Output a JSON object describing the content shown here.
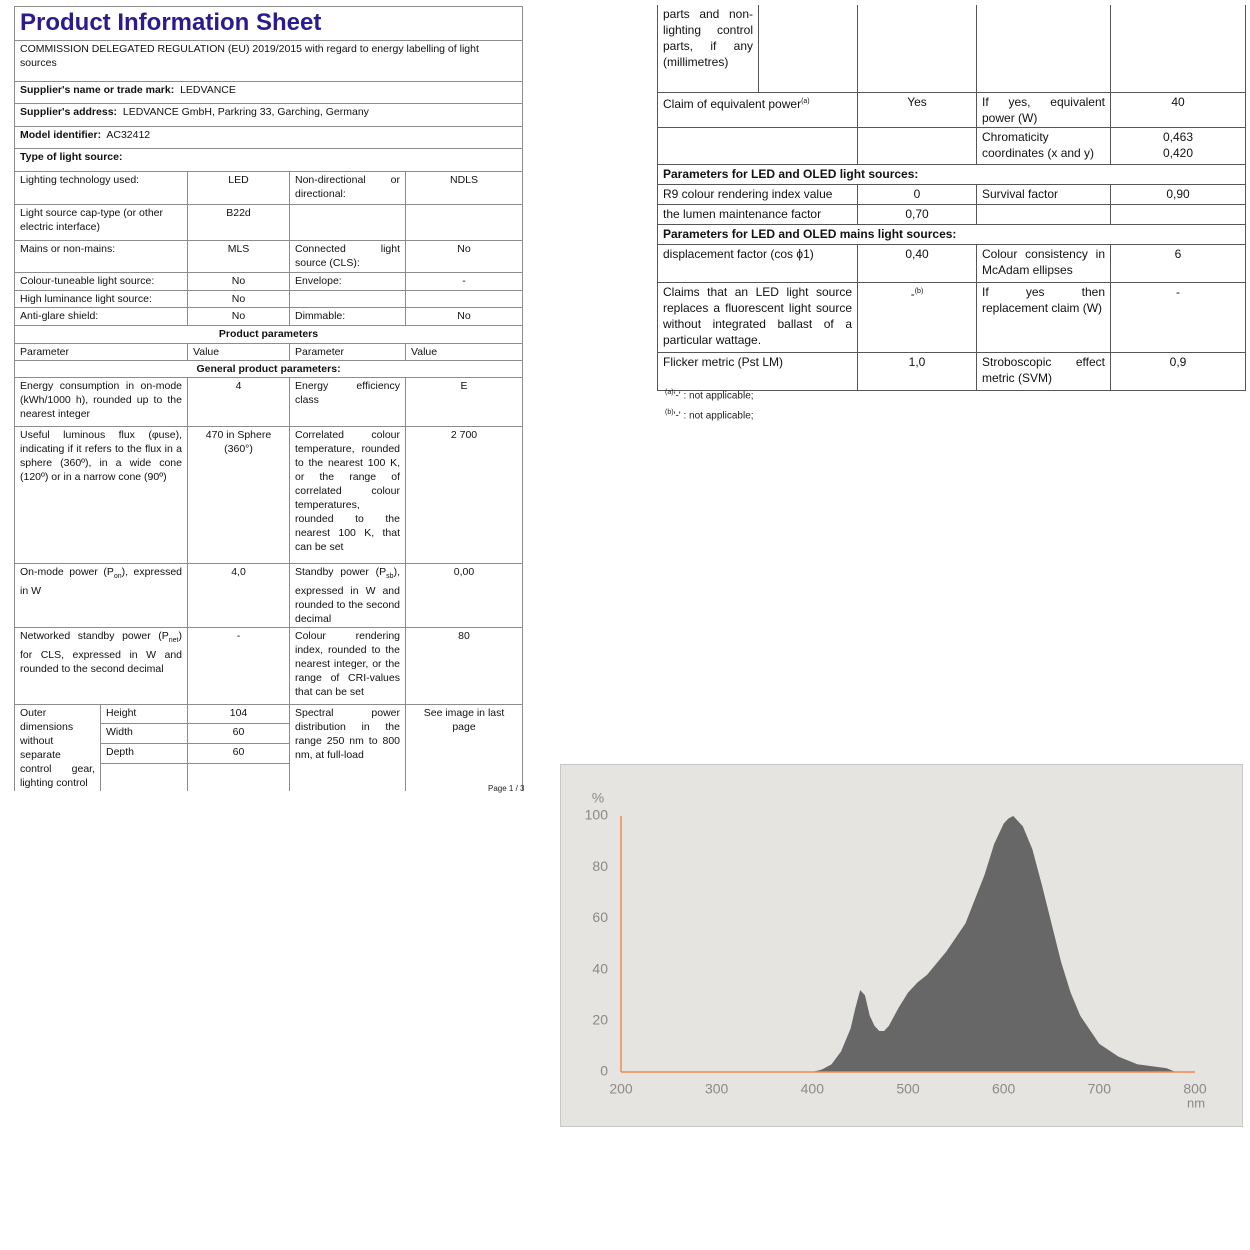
{
  "left_page": {
    "title": "Product Information Sheet",
    "regulation": "COMMISSION DELEGATED REGULATION (EU) 2019/2015 with regard to energy labelling of light sources",
    "supplier_name": {
      "label": "Supplier's name or trade mark:",
      "value": "LEDVANCE"
    },
    "supplier_address": {
      "label": "Supplier's address:",
      "value": "LEDVANCE GmbH, Parkring 33, Garching, Germany"
    },
    "model_identifier": {
      "label": "Model identifier:",
      "value": "AC32412"
    },
    "type_heading": "Type of light source:",
    "type_rows": [
      [
        "Lighting technology used:",
        "LED",
        "Non-directional or directional:",
        "NDLS"
      ],
      [
        "Light source cap-type (or other electric interface)",
        "B22d"
      ],
      [
        "Mains or non-mains:",
        "MLS",
        "Connected light source (CLS):",
        "No"
      ],
      [
        "Colour-tuneable light source:",
        "No",
        "Envelope:",
        "-"
      ],
      [
        "High luminance light source:",
        "No"
      ],
      [
        "Anti-glare shield:",
        "No",
        "Dimmable:",
        "No"
      ]
    ],
    "product_parameters": "Product parameters",
    "columns": [
      "Parameter",
      "Value",
      "Parameter",
      "Value"
    ],
    "general_heading": "General product parameters:",
    "general_rows": [
      [
        "Energy consumption in on-mode (kWh/1000 h), rounded up to the nearest integer",
        "4",
        "Energy efficiency class",
        "E"
      ],
      [
        "Useful luminous flux (φuse), indicating if it refers to the flux in a sphere (360º), in a wide cone (120º) or in a narrow cone (90º)",
        "470 in Sphere (360°)",
        "Correlated colour temperature, rounded to the nearest 100 K, or the range of correlated colour temperatures, rounded to the nearest 100 K, that can be set",
        "2 700"
      ],
      [
        [
          "On-mode power (P",
          "on",
          "), expressed in W"
        ],
        "4,0",
        [
          "Standby power (P",
          "sb",
          "), expressed in W and rounded to the second decimal"
        ],
        "0,00"
      ],
      [
        [
          "Networked standby power (P",
          "net",
          ") for CLS, expressed in W and rounded to the second decimal"
        ],
        "-",
        "Colour rendering index, rounded to the nearest integer, or the range of CRI-values that can be set",
        "80"
      ]
    ],
    "outer_dimensions": {
      "label": "Outer dimensions without separate control gear, lighting control",
      "rows": [
        [
          "Height",
          "104"
        ],
        [
          "Width",
          "60"
        ],
        [
          "Depth",
          "60"
        ]
      ]
    },
    "spectral": {
      "label": "Spectral power distribution in the range 250 nm to 800 nm, at full-load",
      "value": "See image in last page"
    },
    "page": "Page 1 / 3"
  },
  "right_page": {
    "continued": "parts and non-lighting control parts, if any (millimetres)",
    "rows": [
      [
        [
          "Claim of equivalent power",
          "(a)"
        ],
        "Yes",
        "If yes, equivalent power (W)",
        "40"
      ]
    ],
    "chromaticity": {
      "label": "Chromaticity coordinates (x and y)",
      "x": "0,463",
      "y": "0,420"
    },
    "led_heading": "Parameters for LED and OLED light sources:",
    "led_rows": [
      [
        "R9 colour rendering index value",
        "0",
        "Survival factor",
        "0,90"
      ],
      [
        "the lumen maintenance factor",
        "0,70"
      ]
    ],
    "mains_heading": "Parameters for LED and OLED mains light sources:",
    "mains_rows": [
      [
        "displacement factor (cos ϕ1)",
        "0,40",
        "Colour consistency in McAdam ellipses",
        "6"
      ],
      [
        "Claims that an LED light source replaces a fluorescent light source without integrated ballast of a particular wattage.",
        [
          "-",
          "(b)"
        ],
        "If yes then replacement claim (W)",
        "-"
      ],
      [
        "Flicker metric (Pst LM)",
        "1,0",
        "Stroboscopic effect metric (SVM)",
        "0,9"
      ]
    ],
    "footnotes": [
      [
        "(a)",
        "'-' : not applicable;"
      ],
      [
        "(b)",
        "'-' : not applicable;"
      ]
    ]
  },
  "chart_data": {
    "type": "area",
    "x_label": "nm",
    "y_label": "%",
    "x": [
      200,
      400,
      410,
      420,
      430,
      440,
      445,
      450,
      455,
      460,
      465,
      470,
      475,
      480,
      490,
      500,
      510,
      520,
      540,
      560,
      580,
      590,
      600,
      605,
      610,
      620,
      630,
      640,
      650,
      660,
      670,
      680,
      700,
      720,
      740,
      760,
      770,
      780,
      800
    ],
    "values": [
      0,
      0,
      1,
      3,
      8,
      17,
      25,
      32,
      30,
      22,
      18,
      16,
      16,
      18,
      25,
      31,
      35,
      38,
      47,
      58,
      77,
      89,
      97,
      99,
      100,
      96,
      87,
      73,
      58,
      43,
      31,
      22,
      11,
      6,
      3,
      2,
      1.5,
      0,
      0
    ],
    "color": "#676767",
    "axis_color": "#f08a4b",
    "xlim": [
      200,
      800
    ],
    "ylim": [
      0,
      100
    ],
    "xticks": [
      200,
      300,
      400,
      500,
      600,
      700,
      800
    ],
    "yticks": [
      0,
      20,
      40,
      60,
      80,
      100
    ]
  }
}
